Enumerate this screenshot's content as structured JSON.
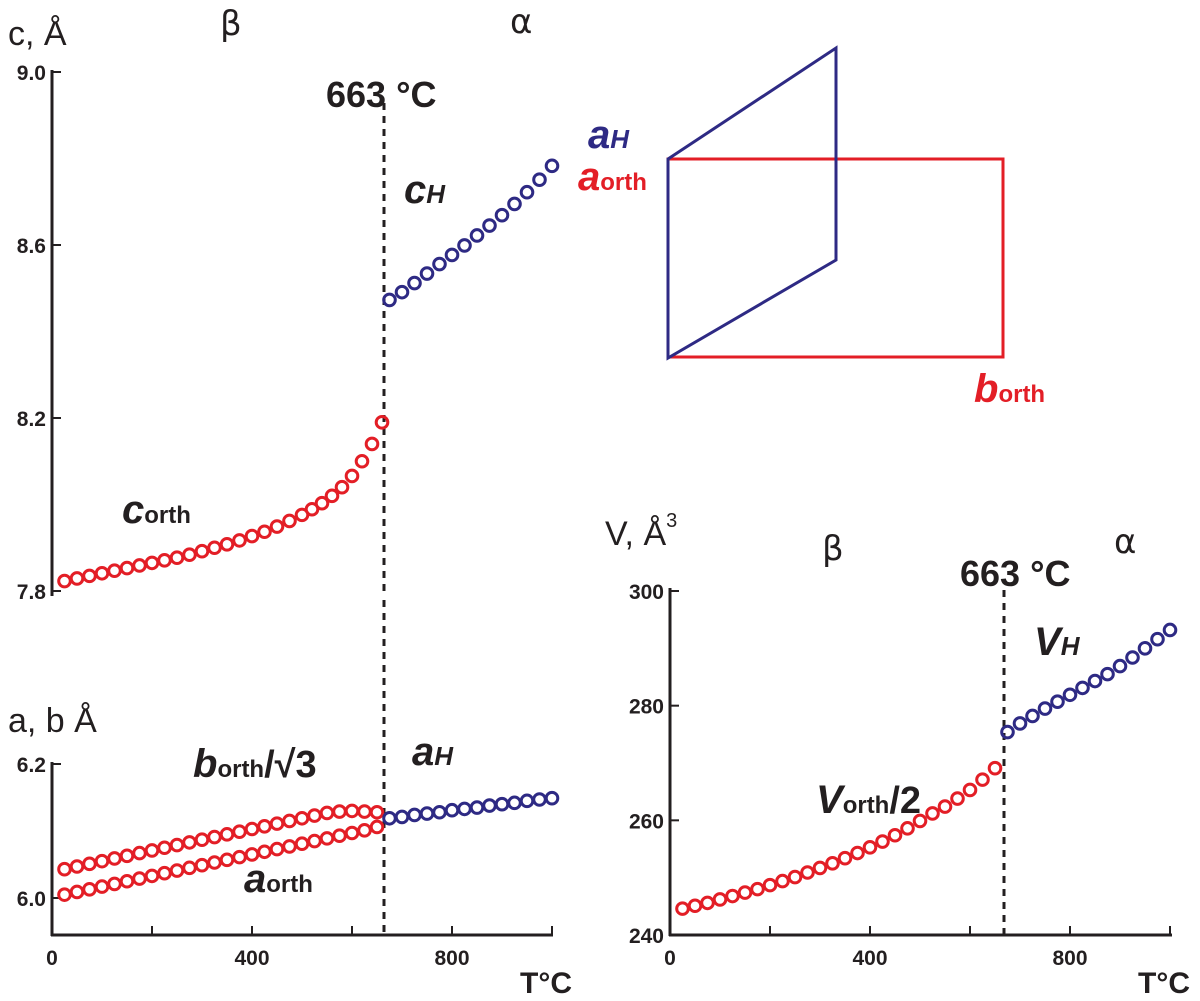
{
  "colors": {
    "red": "#e31e26",
    "blue": "#2e2a84",
    "axis": "#231f20"
  },
  "inset_labels": {
    "a_hex": "a",
    "a_hex_sub": "H",
    "a_orth": "a",
    "a_orth_sub": "orth",
    "b_orth": "b",
    "b_orth_sub": "orth"
  },
  "chart_data": [
    {
      "id": "c-parameter",
      "type": "scatter",
      "ylabel": "c, Å",
      "xlabel": "T°C",
      "ylim": [
        7.8,
        9.0
      ],
      "xlim": [
        0,
        1000
      ],
      "yticks": [
        "7.8",
        "8.2",
        "8.6",
        "9.0"
      ],
      "ytick_values": [
        7.8,
        8.2,
        8.6,
        9.0
      ],
      "phase_labels": [
        "β",
        "α"
      ],
      "transition": {
        "T": 663,
        "label": "663 °C"
      },
      "series": [
        {
          "name": "c_orth",
          "label": "c",
          "label_sub": "orth",
          "color": "#e31e26",
          "x": [
            25,
            50,
            75,
            100,
            125,
            150,
            175,
            200,
            225,
            250,
            275,
            300,
            325,
            350,
            375,
            400,
            425,
            450,
            475,
            500,
            520,
            540,
            560,
            580,
            600,
            620,
            640,
            660
          ],
          "y": [
            7.823,
            7.829,
            7.835,
            7.841,
            7.847,
            7.853,
            7.859,
            7.865,
            7.871,
            7.877,
            7.884,
            7.892,
            7.9,
            7.908,
            7.917,
            7.927,
            7.937,
            7.949,
            7.962,
            7.976,
            7.989,
            8.003,
            8.02,
            8.04,
            8.066,
            8.1,
            8.14,
            8.19
          ]
        },
        {
          "name": "c_H",
          "label": "c",
          "label_sub": "H",
          "color": "#2e2a84",
          "x": [
            675,
            700,
            725,
            750,
            775,
            800,
            825,
            850,
            875,
            900,
            925,
            950,
            975,
            1000
          ],
          "y": [
            8.473,
            8.491,
            8.512,
            8.534,
            8.556,
            8.577,
            8.599,
            8.622,
            8.645,
            8.669,
            8.695,
            8.722,
            8.751,
            8.783
          ]
        }
      ]
    },
    {
      "id": "ab-parameters",
      "type": "scatter",
      "ylabel": "a, b Å",
      "xlabel": "T°C",
      "ylim": [
        6.0,
        6.2
      ],
      "xlim": [
        0,
        1000
      ],
      "yticks": [
        "6.0",
        "6.2"
      ],
      "ytick_values": [
        6.0,
        6.2
      ],
      "xticks": [
        "0",
        "400",
        "800"
      ],
      "xtick_values": [
        0,
        400,
        800
      ],
      "transition": {
        "T": 663
      },
      "series": [
        {
          "name": "b_orth_over_sqrt3",
          "label": "b",
          "label_sub": "orth",
          "label_suffix": "/√3",
          "color": "#e31e26",
          "x": [
            25,
            50,
            75,
            100,
            125,
            150,
            175,
            200,
            225,
            250,
            275,
            300,
            325,
            350,
            375,
            400,
            425,
            450,
            475,
            500,
            525,
            550,
            575,
            600,
            625,
            650
          ],
          "y": [
            6.043,
            6.047,
            6.051,
            6.055,
            6.059,
            6.063,
            6.067,
            6.071,
            6.075,
            6.079,
            6.083,
            6.087,
            6.091,
            6.095,
            6.099,
            6.103,
            6.107,
            6.111,
            6.115,
            6.119,
            6.123,
            6.127,
            6.129,
            6.13,
            6.129,
            6.128
          ]
        },
        {
          "name": "a_orth",
          "label": "a",
          "label_sub": "orth",
          "color": "#e31e26",
          "x": [
            25,
            50,
            75,
            100,
            125,
            150,
            175,
            200,
            225,
            250,
            275,
            300,
            325,
            350,
            375,
            400,
            425,
            450,
            475,
            500,
            525,
            550,
            575,
            600,
            625,
            650
          ],
          "y": [
            6.005,
            6.009,
            6.013,
            6.017,
            6.021,
            6.025,
            6.029,
            6.033,
            6.037,
            6.041,
            6.045,
            6.049,
            6.053,
            6.057,
            6.061,
            6.065,
            6.069,
            6.073,
            6.077,
            6.081,
            6.085,
            6.089,
            6.093,
            6.097,
            6.101,
            6.106
          ]
        },
        {
          "name": "a_H",
          "label": "a",
          "label_sub": "H",
          "color": "#2e2a84",
          "x": [
            675,
            700,
            725,
            750,
            775,
            800,
            825,
            850,
            875,
            900,
            925,
            950,
            975,
            1000
          ],
          "y": [
            6.119,
            6.121,
            6.124,
            6.126,
            6.128,
            6.131,
            6.133,
            6.135,
            6.138,
            6.14,
            6.142,
            6.145,
            6.147,
            6.149
          ]
        }
      ]
    },
    {
      "id": "volume",
      "type": "scatter",
      "ylabel": "V, Å",
      "ylabel_sup": "3",
      "xlabel": "T°C",
      "ylim": [
        240,
        300
      ],
      "xlim": [
        0,
        1000
      ],
      "yticks": [
        "240",
        "260",
        "280",
        "300"
      ],
      "ytick_values": [
        240,
        260,
        280,
        300
      ],
      "xticks": [
        "0",
        "400",
        "800"
      ],
      "xtick_values": [
        0,
        400,
        800
      ],
      "phase_labels": [
        "β",
        "α"
      ],
      "transition": {
        "T": 663,
        "label": "663 °C"
      },
      "series": [
        {
          "name": "V_orth_over_2",
          "label": "V",
          "label_sub": "orth",
          "label_suffix": "/2",
          "color": "#e31e26",
          "x": [
            25,
            50,
            75,
            100,
            125,
            150,
            175,
            200,
            225,
            250,
            275,
            300,
            325,
            350,
            375,
            400,
            425,
            450,
            475,
            500,
            525,
            550,
            575,
            600,
            625,
            650
          ],
          "y": [
            244.6,
            245.1,
            245.6,
            246.2,
            246.8,
            247.4,
            248.0,
            248.7,
            249.4,
            250.1,
            250.9,
            251.7,
            252.5,
            253.4,
            254.3,
            255.3,
            256.3,
            257.4,
            258.6,
            259.9,
            261.2,
            262.4,
            263.8,
            265.3,
            267.1,
            269.1
          ]
        },
        {
          "name": "V_H",
          "label": "V",
          "label_sub": "H",
          "color": "#2e2a84",
          "x": [
            675,
            700,
            725,
            750,
            775,
            800,
            825,
            850,
            875,
            900,
            925,
            950,
            975,
            1000
          ],
          "y": [
            275.4,
            276.9,
            278.2,
            279.5,
            280.7,
            281.9,
            283.1,
            284.3,
            285.5,
            286.9,
            288.4,
            290.0,
            291.6,
            293.2
          ]
        }
      ]
    }
  ]
}
